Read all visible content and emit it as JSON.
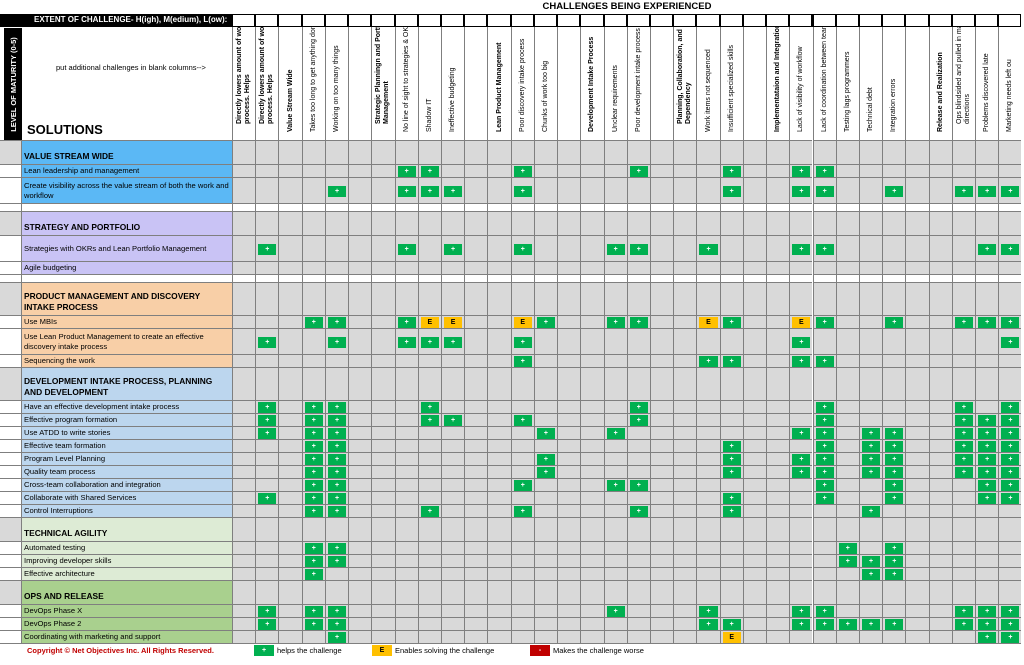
{
  "header": {
    "challenges_title": "CHALLENGES BEING EXPERIENCED",
    "extent_label": "EXTENT OF CHALLENGE- H(igh), M(edium), L(ow):",
    "hint": "put additional challenges in blank columns-->",
    "solutions_title": "SOLUTIONS",
    "maturity_label": "LEVEL OF MATURITY (0-5)"
  },
  "columns": [
    {
      "label": "Directly lowers amount of work in process. Helps",
      "bold": true
    },
    {
      "label": "Directly lowers amount of work in process. Helps",
      "bold": true
    },
    {
      "label": "Value Stream Wide",
      "bold": true
    },
    {
      "label": "Takes too long to get anything done",
      "bold": false
    },
    {
      "label": "Working on too many things",
      "bold": false
    },
    {
      "label": "",
      "bold": false
    },
    {
      "label": "Strategic Planningn and Portfolio Management",
      "bold": true
    },
    {
      "label": "No line of sight to strategies & OKRs",
      "bold": false
    },
    {
      "label": "Shadow IT",
      "bold": false
    },
    {
      "label": "Ineffective budgeting",
      "bold": false
    },
    {
      "label": "",
      "bold": false
    },
    {
      "label": "Lean Product Management",
      "bold": true
    },
    {
      "label": "Poor discovery intake process",
      "bold": false
    },
    {
      "label": "Chunks of work too big",
      "bold": false
    },
    {
      "label": "",
      "bold": false
    },
    {
      "label": "Development Intake Process",
      "bold": true
    },
    {
      "label": "Unclear requirements",
      "bold": false
    },
    {
      "label": "Poor development intake process",
      "bold": false
    },
    {
      "label": "",
      "bold": false
    },
    {
      "label": "Planning, Collaboration, and Dependency",
      "bold": true
    },
    {
      "label": "Work items not sequenced",
      "bold": false
    },
    {
      "label": "Insufficient specialized skills",
      "bold": false
    },
    {
      "label": "",
      "bold": false
    },
    {
      "label": "Implementataion and Integration",
      "bold": true
    },
    {
      "label": "Lack of visibility of workflow",
      "bold": false
    },
    {
      "label": "Lack of coordination between teams",
      "bold": false
    },
    {
      "label": "Testing lags programmers",
      "bold": false
    },
    {
      "label": "Technical debt",
      "bold": false
    },
    {
      "label": "Integration errors",
      "bold": false
    },
    {
      "label": "",
      "bold": false
    },
    {
      "label": "Release and Realization",
      "bold": true
    },
    {
      "label": "Ops blindsided and pulled in many directions",
      "bold": false
    },
    {
      "label": "Problems discovered late",
      "bold": false
    },
    {
      "label": "Marketing needs left ou",
      "bold": false
    }
  ],
  "sections": [
    {
      "title": "VALUE STREAM WIDE",
      "color": "#5bb8f5",
      "rows": [
        {
          "label": "Lean leadership and management",
          "marks": {
            "7": "+",
            "8": "+",
            "12": "+",
            "17": "+",
            "21": "+",
            "24": "+",
            "25": "+"
          }
        },
        {
          "label": "Create visibility across the value stream of both the work and workflow",
          "marks": {
            "4": "+",
            "7": "+",
            "8": "+",
            "9": "+",
            "12": "+",
            "21": "+",
            "24": "+",
            "25": "+",
            "28": "+",
            "31": "+",
            "32": "+",
            "33": "+"
          }
        },
        {
          "label": "",
          "marks": {}
        }
      ]
    },
    {
      "title": "STRATEGY AND PORTFOLIO",
      "color": "#c9c3f5",
      "rows": [
        {
          "label": "Strategies with OKRs and Lean Portfolio Management",
          "marks": {
            "1": "+",
            "7": "+",
            "9": "+",
            "12": "+",
            "16": "+",
            "17": "+",
            "20": "+",
            "24": "+",
            "25": "+",
            "32": "+",
            "33": "+"
          }
        },
        {
          "label": "Agile budgeting",
          "marks": {}
        },
        {
          "label": "",
          "marks": {}
        }
      ]
    },
    {
      "title": "PRODUCT MANAGEMENT AND DISCOVERY INTAKE PROCESS",
      "color": "#f8cfa7",
      "rows": [
        {
          "label": "Use MBIs",
          "marks": {
            "3": "+",
            "4": "+",
            "7": "+",
            "8": "E",
            "9": "E",
            "12": "E",
            "13": "+",
            "16": "+",
            "17": "+",
            "20": "E",
            "21": "+",
            "24": "E",
            "25": "+",
            "28": "+",
            "31": "+",
            "32": "+",
            "33": "+"
          }
        },
        {
          "label": "Use Lean Product Management to create an effective discovery intake process",
          "marks": {
            "1": "+",
            "4": "+",
            "7": "+",
            "8": "+",
            "9": "+",
            "12": "+",
            "24": "+",
            "33": "+"
          }
        },
        {
          "label": "Sequencing the work",
          "marks": {
            "12": "+",
            "20": "+",
            "21": "+",
            "24": "+",
            "25": "+"
          }
        }
      ]
    },
    {
      "title": "DEVELOPMENT INTAKE PROCESS, PLANNING AND DEVELOPMENT",
      "color": "#bcd6ee",
      "rows": [
        {
          "label": "Have an effective development intake process",
          "marks": {
            "1": "+",
            "3": "+",
            "4": "+",
            "8": "+",
            "17": "+",
            "25": "+",
            "31": "+",
            "33": "+"
          }
        },
        {
          "label": "Effective program formation",
          "marks": {
            "1": "+",
            "3": "+",
            "4": "+",
            "8": "+",
            "9": "+",
            "12": "+",
            "17": "+",
            "25": "+",
            "31": "+",
            "32": "+",
            "33": "+"
          }
        },
        {
          "label": "Use ATDD to write stories",
          "marks": {
            "1": "+",
            "3": "+",
            "4": "+",
            "13": "+",
            "16": "+",
            "24": "+",
            "25": "+",
            "27": "+",
            "28": "+",
            "31": "+",
            "32": "+",
            "33": "+"
          }
        },
        {
          "label": "Effective team formation",
          "marks": {
            "3": "+",
            "4": "+",
            "21": "+",
            "25": "+",
            "27": "+",
            "28": "+",
            "31": "+",
            "32": "+",
            "33": "+"
          }
        },
        {
          "label": "Program Level Planning",
          "marks": {
            "3": "+",
            "4": "+",
            "13": "+",
            "21": "+",
            "24": "+",
            "25": "+",
            "27": "+",
            "28": "+",
            "31": "+",
            "32": "+",
            "33": "+"
          }
        },
        {
          "label": "Quality team process",
          "marks": {
            "3": "+",
            "4": "+",
            "13": "+",
            "21": "+",
            "24": "+",
            "25": "+",
            "27": "+",
            "28": "+",
            "31": "+",
            "32": "+",
            "33": "+"
          }
        },
        {
          "label": "Cross-team collaboration and integration",
          "marks": {
            "3": "+",
            "4": "+",
            "12": "+",
            "16": "+",
            "17": "+",
            "25": "+",
            "28": "+",
            "32": "+",
            "33": "+"
          }
        },
        {
          "label": "Collaborate with Shared Services",
          "marks": {
            "1": "+",
            "3": "+",
            "4": "+",
            "21": "+",
            "25": "+",
            "28": "+",
            "32": "+",
            "33": "+"
          }
        },
        {
          "label": "Control Interruptions",
          "marks": {
            "3": "+",
            "4": "+",
            "8": "+",
            "12": "+",
            "17": "+",
            "21": "+",
            "27": "+"
          }
        }
      ]
    },
    {
      "title": "TECHNICAL AGILITY",
      "color": "#ddebd5",
      "rows": [
        {
          "label": "Automated testing",
          "marks": {
            "3": "+",
            "4": "+",
            "26": "+",
            "28": "+"
          }
        },
        {
          "label": "Improving developer skills",
          "marks": {
            "3": "+",
            "4": "+",
            "26": "+",
            "27": "+",
            "28": "+"
          }
        },
        {
          "label": "Effective architecture",
          "marks": {
            "3": "+",
            "27": "+",
            "28": "+"
          }
        }
      ]
    },
    {
      "title": "OPS AND RELEASE",
      "color": "#a9d08e",
      "rows": [
        {
          "label": "DevOps Phase X",
          "marks": {
            "1": "+",
            "3": "+",
            "4": "+",
            "16": "+",
            "20": "+",
            "24": "+",
            "25": "+",
            "31": "+",
            "32": "+",
            "33": "+"
          }
        },
        {
          "label": "DevOps Phase 2",
          "marks": {
            "1": "+",
            "3": "+",
            "4": "+",
            "20": "+",
            "21": "+",
            "24": "+",
            "25": "+",
            "26": "+",
            "27": "+",
            "28": "+",
            "31": "+",
            "32": "+",
            "33": "+"
          }
        },
        {
          "label": "Coordinating with marketing and support",
          "marks": {
            "4": "+",
            "21": "E",
            "32": "+",
            "33": "+"
          }
        }
      ]
    }
  ],
  "legend": {
    "copyright": "Copyright © Net Objectives Inc. All Rights Reserved.",
    "helps_symbol": "+",
    "helps_text": "helps the challenge",
    "enables_symbol": "E",
    "enables_text": "Enables solving the challenge",
    "worse_symbol": "-",
    "worse_text": "Makes the challenge worse"
  },
  "colors": {
    "helps": "#00b050",
    "enables": "#ffc000",
    "worse": "#c00000",
    "grid_fill": "#d9d9d9",
    "blank_row": "#ffffff"
  }
}
